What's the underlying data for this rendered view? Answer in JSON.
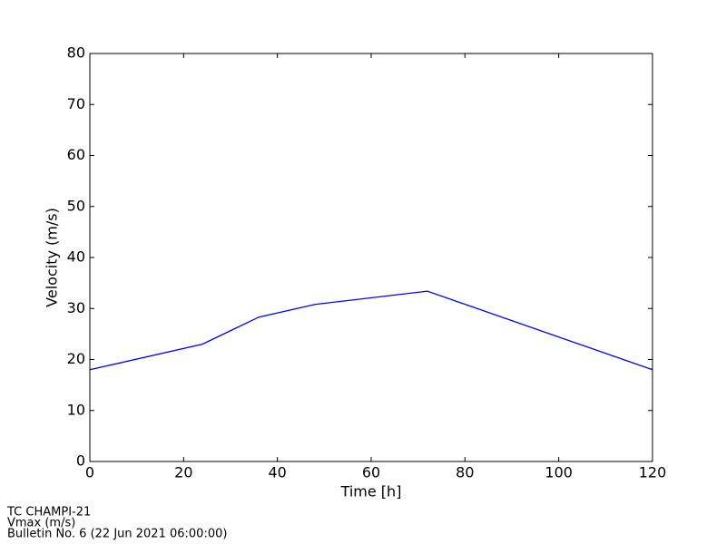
{
  "chart_data": {
    "type": "line",
    "xlabel": "Time [h]",
    "ylabel": "Velocity (m/s)",
    "x": [
      0,
      24,
      36,
      48,
      72,
      120
    ],
    "series": [
      {
        "name": "Vmax",
        "color": "#0000ff",
        "values": [
          18,
          23,
          28.3,
          30.8,
          33.4,
          18
        ]
      }
    ],
    "xlim": [
      0,
      120
    ],
    "xticks": [
      0,
      20,
      40,
      60,
      80,
      100,
      120
    ],
    "ylim": [
      0,
      80
    ],
    "yticks": [
      0,
      10,
      20,
      30,
      40,
      50,
      60,
      70,
      80
    ],
    "grid": false,
    "annotations": [
      "TC CHAMPI-21",
      "Vmax (m/s)",
      "Bulletin No. 6 (22 Jun 2021  06:00:00)"
    ]
  }
}
